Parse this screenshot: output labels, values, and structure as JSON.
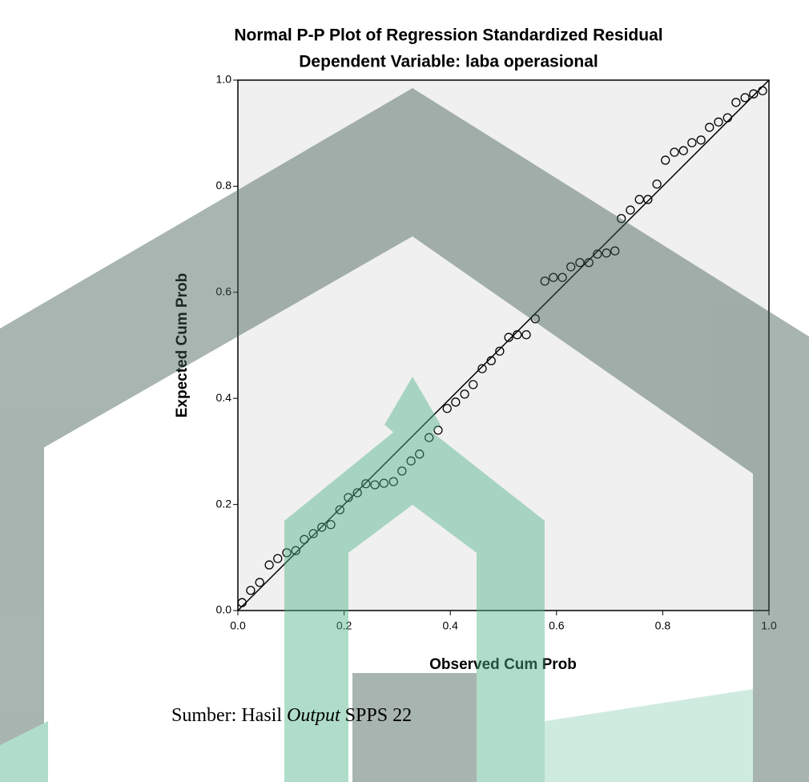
{
  "chart_data": {
    "type": "scatter",
    "title": "Normal P-P Plot of Regression Standardized Residual",
    "subtitle": "Dependent Variable: laba operasional",
    "xlabel": "Observed Cum Prob",
    "ylabel": "Expected Cum Prob",
    "xlim": [
      0,
      1
    ],
    "ylim": [
      0,
      1
    ],
    "xticks": [
      {
        "value": 0,
        "label": "0.0"
      },
      0.2,
      0.4,
      0.6,
      0.8,
      {
        "value": 1,
        "label": "1.0"
      }
    ],
    "yticks": [
      {
        "value": 0,
        "label": "0.0"
      },
      0.2,
      0.4,
      0.6,
      0.8,
      {
        "value": 1,
        "label": "1.0"
      }
    ],
    "reference_line": true,
    "color": "#000000",
    "x": [
      0.008,
      0.024,
      0.041,
      0.059,
      0.075,
      0.092,
      0.109,
      0.125,
      0.142,
      0.158,
      0.175,
      0.192,
      0.208,
      0.225,
      0.241,
      0.258,
      0.275,
      0.293,
      0.309,
      0.326,
      0.342,
      0.36,
      0.377,
      0.394,
      0.41,
      0.427,
      0.443,
      0.46,
      0.477,
      0.493,
      0.51,
      0.526,
      0.543,
      0.56,
      0.578,
      0.594,
      0.611,
      0.627,
      0.644,
      0.661,
      0.677,
      0.694,
      0.71,
      0.722,
      0.739,
      0.756,
      0.772,
      0.789,
      0.805,
      0.822,
      0.839,
      0.855,
      0.872,
      0.888,
      0.905,
      0.922,
      0.938,
      0.955,
      0.971,
      0.988
    ],
    "values": [
      0.015,
      0.038,
      0.053,
      0.086,
      0.098,
      0.109,
      0.113,
      0.134,
      0.145,
      0.157,
      0.162,
      0.19,
      0.213,
      0.222,
      0.239,
      0.237,
      0.24,
      0.243,
      0.263,
      0.282,
      0.295,
      0.326,
      0.34,
      0.381,
      0.393,
      0.408,
      0.426,
      0.456,
      0.471,
      0.489,
      0.515,
      0.52,
      0.52,
      0.55,
      0.621,
      0.628,
      0.628,
      0.648,
      0.656,
      0.656,
      0.672,
      0.674,
      0.678,
      0.739,
      0.755,
      0.775,
      0.775,
      0.804,
      0.849,
      0.864,
      0.867,
      0.882,
      0.887,
      0.911,
      0.921,
      0.929,
      0.958,
      0.967,
      0.974,
      0.98
    ]
  },
  "caption": {
    "prefix": "Sumber: Hasil",
    "emphasis": "Output",
    "suffix": "SPPS 22"
  }
}
